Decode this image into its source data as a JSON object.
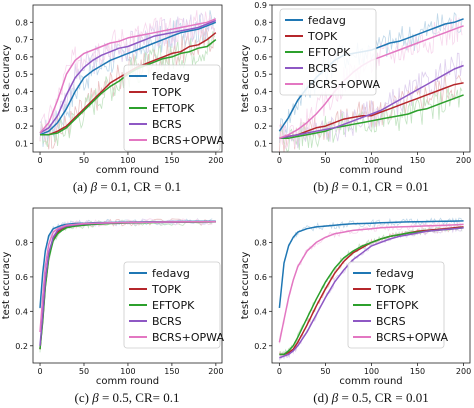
{
  "colors": {
    "fedavg": "#1f77b4",
    "TOPK": "#b5262b",
    "EFTOPK": "#2ca02c",
    "BCRS": "#8e58c4",
    "BCRS+OPWA": "#e377c2"
  },
  "chart_data": [
    {
      "type": "line",
      "panel": "a",
      "caption": {
        "prefix": "(a)",
        "beta_sym": "β",
        "rest": " = 0.1, CR = 0.1"
      },
      "xlabel": "comm round",
      "ylabel": "test accuracy",
      "xlim": [
        -8,
        207
      ],
      "ylim": [
        0.05,
        0.9
      ],
      "xticks": [
        0,
        50,
        100,
        150,
        200
      ],
      "yticks": [
        0.1,
        0.2,
        0.3,
        0.4,
        0.5,
        0.6,
        0.7,
        0.8
      ],
      "legend": "center-right",
      "x": [
        0,
        10,
        20,
        30,
        40,
        50,
        60,
        70,
        80,
        90,
        100,
        110,
        120,
        130,
        140,
        150,
        160,
        170,
        180,
        190,
        200
      ],
      "series": [
        {
          "name": "fedavg",
          "values": [
            0.15,
            0.17,
            0.22,
            0.3,
            0.4,
            0.48,
            0.52,
            0.55,
            0.58,
            0.6,
            0.62,
            0.64,
            0.66,
            0.68,
            0.7,
            0.72,
            0.74,
            0.75,
            0.76,
            0.78,
            0.8
          ]
        },
        {
          "name": "TOPK",
          "values": [
            0.15,
            0.15,
            0.17,
            0.2,
            0.25,
            0.3,
            0.35,
            0.4,
            0.45,
            0.48,
            0.51,
            0.54,
            0.56,
            0.58,
            0.6,
            0.62,
            0.63,
            0.66,
            0.67,
            0.7,
            0.74
          ]
        },
        {
          "name": "EFTOPK",
          "values": [
            0.15,
            0.15,
            0.16,
            0.19,
            0.24,
            0.29,
            0.34,
            0.39,
            0.43,
            0.46,
            0.5,
            0.53,
            0.55,
            0.57,
            0.59,
            0.6,
            0.62,
            0.63,
            0.65,
            0.66,
            0.7
          ]
        },
        {
          "name": "BCRS",
          "values": [
            0.16,
            0.19,
            0.26,
            0.38,
            0.48,
            0.54,
            0.58,
            0.61,
            0.63,
            0.65,
            0.66,
            0.68,
            0.7,
            0.72,
            0.73,
            0.74,
            0.75,
            0.76,
            0.77,
            0.79,
            0.81
          ]
        },
        {
          "name": "BCRS+OPWA",
          "values": [
            0.16,
            0.22,
            0.35,
            0.5,
            0.58,
            0.62,
            0.64,
            0.66,
            0.68,
            0.69,
            0.71,
            0.72,
            0.73,
            0.74,
            0.75,
            0.76,
            0.77,
            0.78,
            0.79,
            0.8,
            0.82
          ]
        }
      ]
    },
    {
      "type": "line",
      "panel": "b",
      "caption": {
        "prefix": "(b)",
        "beta_sym": "β",
        "rest": " = 0.1, CR = 0.01"
      },
      "xlabel": "comm round",
      "ylabel": "test accuracy",
      "xlim": [
        -8,
        207
      ],
      "ylim": [
        0.05,
        0.9
      ],
      "xticks": [
        0,
        50,
        100,
        150,
        200
      ],
      "yticks": [
        0.1,
        0.2,
        0.3,
        0.4,
        0.5,
        0.6,
        0.7,
        0.8,
        0.9
      ],
      "legend": "top-left",
      "x": [
        0,
        10,
        20,
        30,
        40,
        50,
        60,
        70,
        80,
        90,
        100,
        110,
        120,
        130,
        140,
        150,
        160,
        170,
        180,
        190,
        200
      ],
      "series": [
        {
          "name": "fedavg",
          "values": [
            0.17,
            0.25,
            0.35,
            0.42,
            0.48,
            0.53,
            0.58,
            0.61,
            0.62,
            0.63,
            0.64,
            0.66,
            0.68,
            0.69,
            0.71,
            0.73,
            0.75,
            0.77,
            0.79,
            0.8,
            0.82
          ]
        },
        {
          "name": "TOPK",
          "values": [
            0.13,
            0.14,
            0.15,
            0.17,
            0.19,
            0.2,
            0.22,
            0.24,
            0.25,
            0.26,
            0.26,
            0.28,
            0.3,
            0.32,
            0.34,
            0.36,
            0.38,
            0.4,
            0.42,
            0.44,
            0.45
          ]
        },
        {
          "name": "EFTOPK",
          "values": [
            0.13,
            0.13,
            0.14,
            0.15,
            0.16,
            0.17,
            0.19,
            0.2,
            0.21,
            0.22,
            0.23,
            0.24,
            0.25,
            0.26,
            0.27,
            0.29,
            0.3,
            0.32,
            0.34,
            0.36,
            0.38
          ]
        },
        {
          "name": "BCRS",
          "values": [
            0.13,
            0.14,
            0.15,
            0.16,
            0.17,
            0.18,
            0.19,
            0.21,
            0.23,
            0.25,
            0.27,
            0.29,
            0.32,
            0.35,
            0.38,
            0.41,
            0.44,
            0.47,
            0.5,
            0.53,
            0.55
          ]
        },
        {
          "name": "BCRS+OPWA",
          "values": [
            0.13,
            0.15,
            0.18,
            0.22,
            0.27,
            0.33,
            0.4,
            0.46,
            0.51,
            0.55,
            0.58,
            0.6,
            0.62,
            0.64,
            0.66,
            0.68,
            0.7,
            0.72,
            0.74,
            0.76,
            0.78
          ]
        }
      ]
    },
    {
      "type": "line",
      "panel": "c",
      "caption": {
        "prefix": "(c)",
        "beta_sym": "β",
        "rest": " = 0.5, CR= 0.1"
      },
      "xlabel": "comm round",
      "ylabel": "test accuracy",
      "xlim": [
        -8,
        207
      ],
      "ylim": [
        0.1,
        1.0
      ],
      "xticks": [
        0,
        50,
        100,
        150,
        200
      ],
      "yticks": [
        0.2,
        0.4,
        0.6,
        0.8
      ],
      "legend": "lower-right",
      "x": [
        0,
        3,
        6,
        10,
        15,
        20,
        25,
        30,
        40,
        50,
        60,
        80,
        100,
        125,
        150,
        175,
        200
      ],
      "series": [
        {
          "name": "fedavg",
          "values": [
            0.42,
            0.62,
            0.75,
            0.84,
            0.88,
            0.89,
            0.9,
            0.905,
            0.91,
            0.912,
            0.914,
            0.916,
            0.918,
            0.92,
            0.921,
            0.922,
            0.923
          ]
        },
        {
          "name": "TOPK",
          "values": [
            0.18,
            0.35,
            0.55,
            0.72,
            0.82,
            0.86,
            0.88,
            0.89,
            0.9,
            0.905,
            0.91,
            0.913,
            0.915,
            0.917,
            0.918,
            0.919,
            0.92
          ]
        },
        {
          "name": "EFTOPK",
          "values": [
            0.18,
            0.34,
            0.54,
            0.71,
            0.81,
            0.85,
            0.87,
            0.885,
            0.895,
            0.9,
            0.905,
            0.91,
            0.913,
            0.915,
            0.917,
            0.918,
            0.919
          ]
        },
        {
          "name": "BCRS",
          "values": [
            0.2,
            0.38,
            0.58,
            0.74,
            0.83,
            0.87,
            0.885,
            0.895,
            0.902,
            0.907,
            0.91,
            0.913,
            0.915,
            0.917,
            0.918,
            0.919,
            0.92
          ]
        },
        {
          "name": "BCRS+OPWA",
          "values": [
            0.28,
            0.48,
            0.66,
            0.79,
            0.86,
            0.88,
            0.89,
            0.9,
            0.905,
            0.91,
            0.912,
            0.914,
            0.916,
            0.918,
            0.919,
            0.92,
            0.921
          ]
        }
      ]
    },
    {
      "type": "line",
      "panel": "d",
      "caption": {
        "prefix": "(d)",
        "beta_sym": "β",
        "rest": " = 0.5, CR = 0.01"
      },
      "xlabel": "comm round",
      "ylabel": "test accuracy",
      "xlim": [
        -8,
        207
      ],
      "ylim": [
        0.1,
        1.0
      ],
      "xticks": [
        0,
        50,
        100,
        150,
        200
      ],
      "yticks": [
        0.2,
        0.4,
        0.6,
        0.8
      ],
      "legend": "lower-right",
      "x": [
        0,
        5,
        10,
        15,
        20,
        30,
        40,
        50,
        60,
        70,
        80,
        90,
        100,
        110,
        120,
        130,
        140,
        150,
        160,
        170,
        180,
        190,
        200
      ],
      "series": [
        {
          "name": "fedavg",
          "values": [
            0.42,
            0.68,
            0.78,
            0.83,
            0.86,
            0.88,
            0.89,
            0.895,
            0.9,
            0.905,
            0.908,
            0.91,
            0.912,
            0.914,
            0.916,
            0.918,
            0.919,
            0.92,
            0.921,
            0.922,
            0.923,
            0.924,
            0.925
          ]
        },
        {
          "name": "TOPK",
          "values": [
            0.15,
            0.15,
            0.16,
            0.18,
            0.22,
            0.32,
            0.43,
            0.53,
            0.62,
            0.69,
            0.74,
            0.77,
            0.8,
            0.82,
            0.835,
            0.845,
            0.855,
            0.865,
            0.87,
            0.875,
            0.88,
            0.885,
            0.89
          ]
        },
        {
          "name": "EFTOPK",
          "values": [
            0.15,
            0.15,
            0.17,
            0.2,
            0.25,
            0.36,
            0.47,
            0.57,
            0.65,
            0.71,
            0.75,
            0.78,
            0.8,
            0.82,
            0.835,
            0.845,
            0.855,
            0.86,
            0.865,
            0.87,
            0.875,
            0.88,
            0.885
          ]
        },
        {
          "name": "BCRS",
          "values": [
            0.13,
            0.14,
            0.15,
            0.17,
            0.2,
            0.28,
            0.38,
            0.48,
            0.57,
            0.64,
            0.7,
            0.74,
            0.78,
            0.8,
            0.82,
            0.835,
            0.845,
            0.855,
            0.865,
            0.87,
            0.875,
            0.88,
            0.885
          ]
        },
        {
          "name": "BCRS+OPWA",
          "values": [
            0.22,
            0.35,
            0.48,
            0.58,
            0.66,
            0.75,
            0.8,
            0.83,
            0.85,
            0.86,
            0.87,
            0.875,
            0.88,
            0.885,
            0.888,
            0.89,
            0.892,
            0.894,
            0.896,
            0.898,
            0.9,
            0.902,
            0.905
          ]
        }
      ]
    }
  ]
}
